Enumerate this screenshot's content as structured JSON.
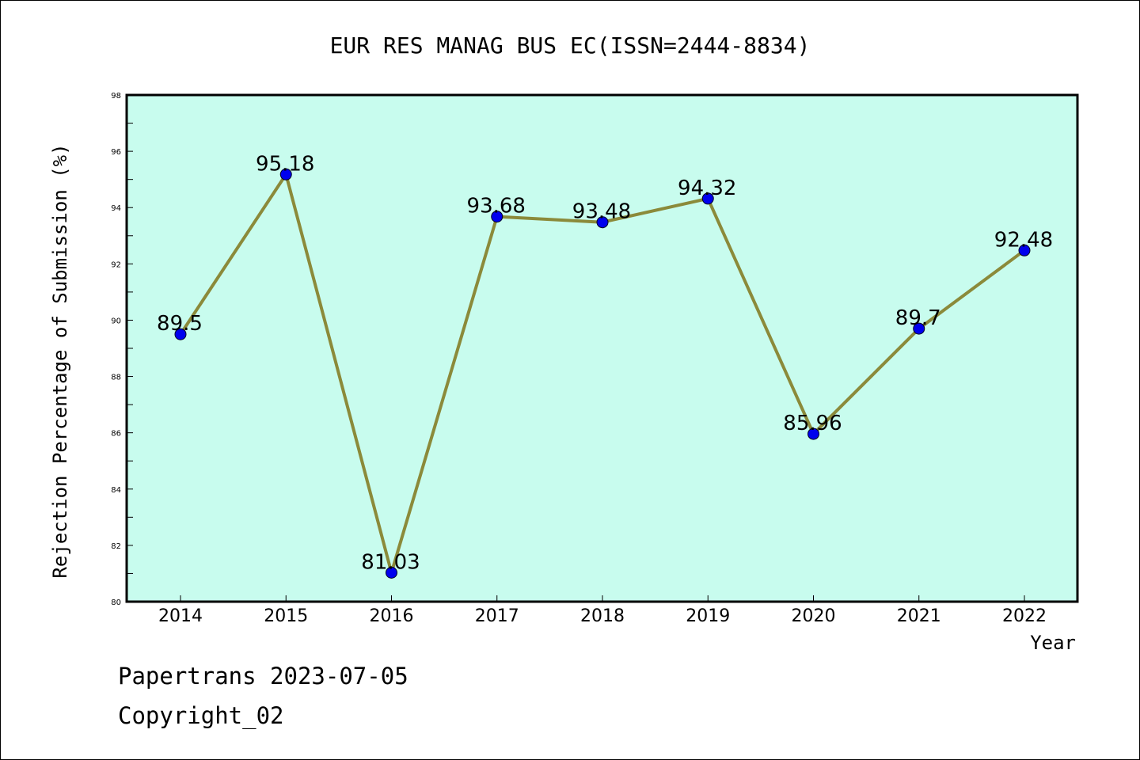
{
  "chart_data": {
    "type": "line",
    "title": "EUR RES MANAG BUS EC(ISSN=2444-8834)",
    "xlabel": "Year",
    "ylabel": "Rejection Percentage of Submission (%)",
    "ylim": [
      80,
      98
    ],
    "y_ticks": [
      "80",
      "82",
      "84",
      "86",
      "88",
      "90",
      "92",
      "94",
      "96",
      "98"
    ],
    "categories": [
      "2014",
      "2015",
      "2016",
      "2017",
      "2018",
      "2019",
      "2020",
      "2021",
      "2022"
    ],
    "values": [
      89.5,
      95.18,
      81.03,
      93.68,
      93.48,
      94.32,
      85.96,
      89.7,
      92.48
    ],
    "data_labels": [
      "89.5",
      "95.18",
      "81.03",
      "93.68",
      "93.48",
      "94.32",
      "85.96",
      "89.7",
      "92.48"
    ],
    "grid": false,
    "colors": {
      "plot_background": "#c8fcee",
      "line": "#8b8a3a",
      "marker": "#0000ee"
    }
  },
  "footer": {
    "line1": "Papertrans 2023-07-05",
    "line2": "Copyright_02"
  }
}
